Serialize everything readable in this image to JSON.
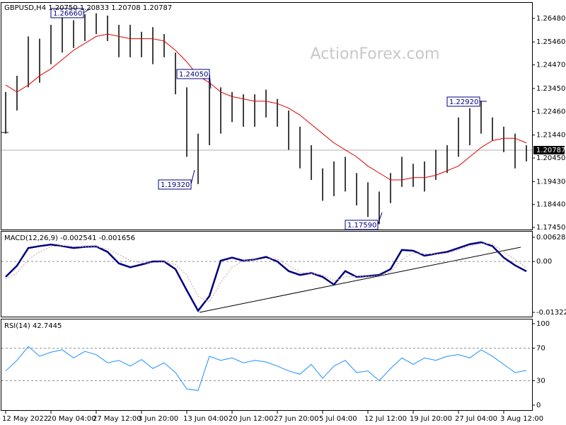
{
  "chart_data": [
    {
      "type": "hilo",
      "title": "GBPUSD,H4  1.20750 1.20833 1.20708 1.20787",
      "watermark": "ActionForex.com",
      "color": "#000000",
      "high": [
        1.233,
        1.24,
        1.257,
        1.256,
        1.262,
        1.265,
        1.264,
        1.2666,
        1.267,
        1.266,
        1.262,
        1.262,
        1.259,
        1.261,
        1.258,
        1.25,
        1.235,
        1.215,
        1.2405,
        1.235,
        1.233,
        1.232,
        1.232,
        1.234,
        1.23,
        1.225,
        1.218,
        1.21,
        1.2,
        1.203,
        1.205,
        1.198,
        1.194,
        1.19,
        1.198,
        1.205,
        1.202,
        1.203,
        1.208,
        1.21,
        1.222,
        1.226,
        1.2292,
        1.222,
        1.218,
        1.215,
        1.21
      ],
      "low": [
        1.215,
        1.225,
        1.235,
        1.237,
        1.245,
        1.25,
        1.252,
        1.255,
        1.258,
        1.255,
        1.248,
        1.248,
        1.248,
        1.245,
        1.248,
        1.232,
        1.205,
        1.1932,
        1.21,
        1.215,
        1.22,
        1.218,
        1.218,
        1.222,
        1.218,
        1.208,
        1.2,
        1.195,
        1.186,
        1.188,
        1.19,
        1.184,
        1.179,
        1.1759,
        1.185,
        1.192,
        1.192,
        1.19,
        1.195,
        1.198,
        1.205,
        1.21,
        1.215,
        1.212,
        1.207,
        1.2,
        1.203
      ],
      "ma": {
        "color": "#e00000",
        "values": [
          1.236,
          1.233,
          1.236,
          1.24,
          1.243,
          1.247,
          1.251,
          1.254,
          1.257,
          1.258,
          1.257,
          1.256,
          1.256,
          1.256,
          1.255,
          1.251,
          1.246,
          1.24,
          1.237,
          1.233,
          1.231,
          1.23,
          1.229,
          1.229,
          1.228,
          1.226,
          1.223,
          1.219,
          1.215,
          1.211,
          1.208,
          1.205,
          1.201,
          1.198,
          1.195,
          1.195,
          1.196,
          1.196,
          1.197,
          1.199,
          1.201,
          1.205,
          1.209,
          1.212,
          1.213,
          1.213,
          1.211
        ]
      },
      "last_price": {
        "value": 1.20787,
        "label": "1.20787"
      },
      "annotations": [
        "1.26660",
        "1.24050",
        "1.19320",
        "1.17590",
        "1.22920"
      ],
      "ylim": [
        1.1736,
        1.2715
      ],
      "yticks": [
        {
          "value": 1.2648,
          "label": "1.26480"
        },
        {
          "value": 1.2546,
          "label": "1.25460"
        },
        {
          "value": 1.2447,
          "label": "1.24470"
        },
        {
          "value": 1.2345,
          "label": "1.23450"
        },
        {
          "value": 1.2246,
          "label": "1.22460"
        },
        {
          "value": 1.2144,
          "label": "1.21440"
        },
        {
          "value": 1.2045,
          "label": "1.20450"
        },
        {
          "value": 1.1943,
          "label": "1.19430"
        },
        {
          "value": 1.1844,
          "label": "1.18440"
        },
        {
          "value": 1.1745,
          "label": "1.17450"
        }
      ]
    },
    {
      "type": "line",
      "title": "MACD(12,26,9) -0.002541 -0.001656",
      "series": [
        {
          "color": "#000080",
          "width": 2.5,
          "dash": "none",
          "values": [
            -0.004,
            -0.0011,
            0.0035,
            0.004,
            0.0044,
            0.004,
            0.0035,
            0.0038,
            0.0039,
            0.0025,
            -0.0005,
            -0.0015,
            -0.0008,
            0.0,
            0.0,
            -0.002,
            -0.0075,
            -0.0128,
            -0.009,
            0.0002,
            0.001,
            0.0002,
            0.0005,
            0.0012,
            0.0,
            -0.0025,
            -0.0035,
            -0.003,
            -0.004,
            -0.006,
            -0.0025,
            -0.004,
            -0.0038,
            -0.0035,
            -0.002,
            0.003,
            0.0028,
            0.0015,
            0.002,
            0.0025,
            0.0035,
            0.0045,
            0.005,
            0.004,
            0.001,
            -0.001,
            -0.002541
          ]
        },
        {
          "color": "#c8a0a0",
          "width": 1,
          "dash": "2 2",
          "values": [
            -0.0045,
            -0.003,
            0.0005,
            0.0025,
            0.0038,
            0.0041,
            0.0039,
            0.0038,
            0.0038,
            0.0033,
            0.0018,
            0.0003,
            -0.0004,
            -0.0003,
            -0.0001,
            -0.0008,
            -0.0035,
            -0.009,
            -0.0105,
            -0.0055,
            -0.0015,
            0.0002,
            0.0004,
            0.0008,
            0.0006,
            -0.001,
            -0.0028,
            -0.0031,
            -0.0035,
            -0.005,
            -0.004,
            -0.0038,
            -0.0039,
            -0.0036,
            -0.0028,
            0.0005,
            0.0022,
            0.002,
            0.0019,
            0.0022,
            0.003,
            0.004,
            0.0047,
            0.0045,
            0.0025,
            0.0005,
            -0.001656
          ]
        }
      ],
      "levels": [
        0
      ],
      "ylim": [
        -0.01433,
        0.00776
      ],
      "yticks": [
        0.006285,
        {
          "value": 0,
          "label": "0.00"
        },
        -0.013223
      ]
    },
    {
      "type": "line",
      "title": "RSI(14) 42.7445",
      "categories": [
        "12 May 2022",
        null,
        null,
        null,
        "20 May 04:00",
        null,
        null,
        null,
        "27 May 12:00",
        null,
        null,
        null,
        "3 Jun 20:00",
        null,
        null,
        null,
        "13 Jun 04:00",
        null,
        null,
        null,
        "20 Jun 12:00",
        null,
        null,
        null,
        "27 Jun 20:00",
        null,
        null,
        null,
        "5 Jul 04:00",
        null,
        null,
        null,
        "12 Jul 12:00",
        null,
        null,
        null,
        "19 Jul 20:00",
        null,
        null,
        null,
        "27 Jul 04:00",
        null,
        null,
        null,
        "3 Aug 12:00",
        null,
        null
      ],
      "series": [
        {
          "color": "#1e90ff",
          "width": 1,
          "dash": "none",
          "values": [
            42,
            55,
            72,
            60,
            65,
            68,
            58,
            66,
            62,
            52,
            55,
            48,
            56,
            45,
            52,
            40,
            20,
            18,
            60,
            55,
            58,
            52,
            55,
            53,
            48,
            42,
            38,
            50,
            33,
            48,
            55,
            40,
            42,
            30,
            45,
            58,
            50,
            58,
            55,
            60,
            62,
            58,
            68,
            60,
            50,
            40,
            42.7445
          ]
        }
      ],
      "levels": [
        70,
        30
      ],
      "ylim": [
        -6.1,
        105.2
      ],
      "yticks": [
        100,
        70,
        30,
        0
      ]
    }
  ]
}
